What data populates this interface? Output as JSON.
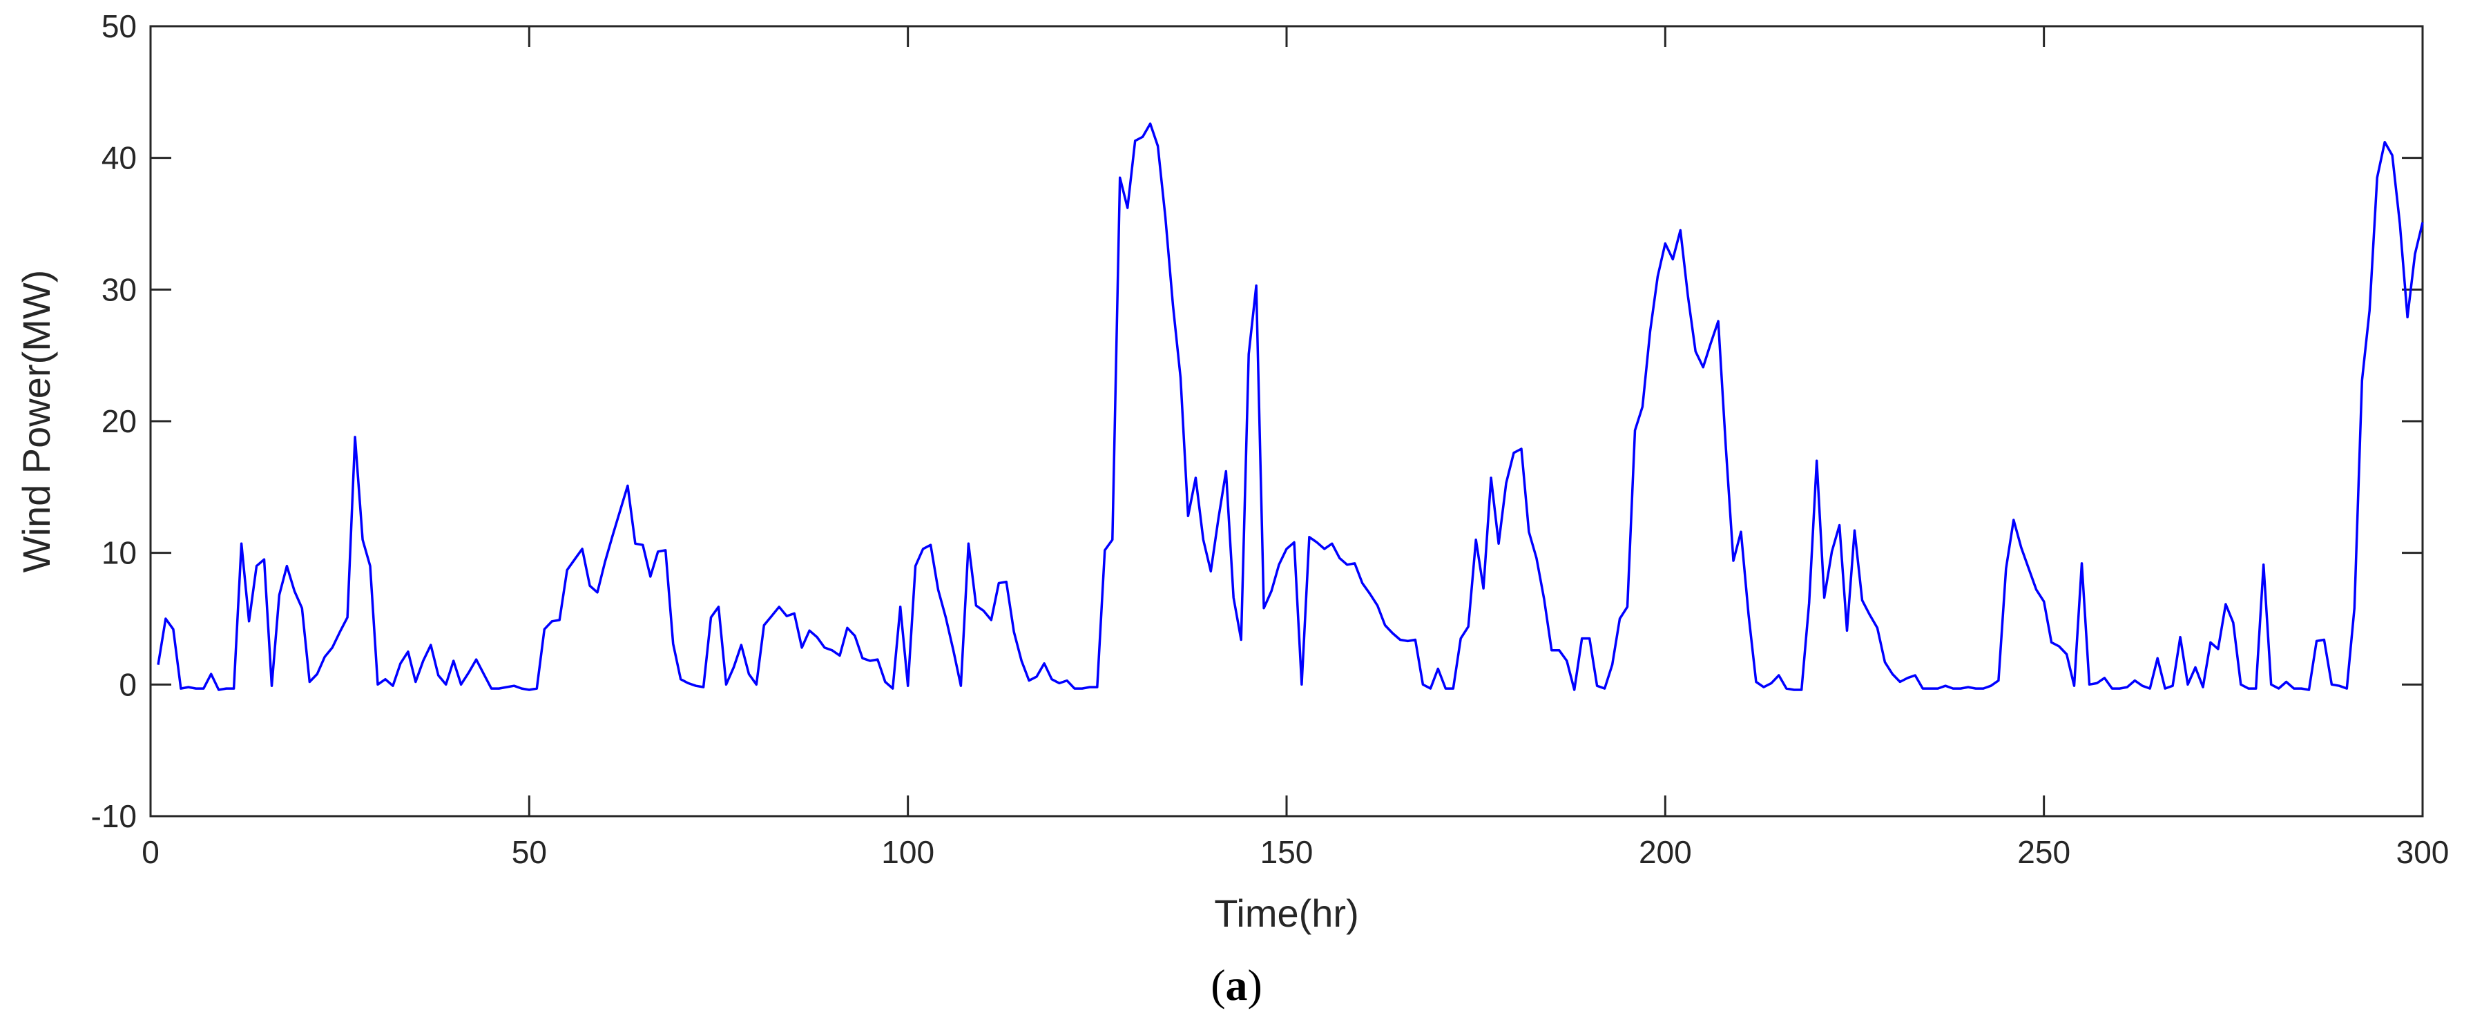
{
  "caption": {
    "open": "(",
    "letter": "a",
    "close": ")"
  },
  "chart_data": {
    "type": "line",
    "xlabel": "Time(hr)",
    "ylabel": "Wind Power(MW)",
    "xlim": [
      0,
      300
    ],
    "ylim": [
      -10,
      50
    ],
    "xticks": [
      0,
      50,
      100,
      150,
      200,
      250,
      300
    ],
    "yticks": [
      -10,
      0,
      10,
      20,
      30,
      40,
      50
    ],
    "grid": false,
    "line_color": "#0000ff",
    "x": [
      1,
      2,
      3,
      4,
      5,
      6,
      7,
      8,
      9,
      10,
      11,
      12,
      13,
      14,
      15,
      16,
      17,
      18,
      19,
      20,
      21,
      22,
      23,
      24,
      25,
      26,
      27,
      28,
      29,
      30,
      31,
      32,
      33,
      34,
      35,
      36,
      37,
      38,
      39,
      40,
      41,
      42,
      43,
      44,
      45,
      46,
      47,
      48,
      49,
      50,
      51,
      52,
      53,
      54,
      55,
      56,
      57,
      58,
      59,
      60,
      61,
      62,
      63,
      64,
      65,
      66,
      67,
      68,
      69,
      70,
      71,
      72,
      73,
      74,
      75,
      76,
      77,
      78,
      79,
      80,
      81,
      82,
      83,
      84,
      85,
      86,
      87,
      88,
      89,
      90,
      91,
      92,
      93,
      94,
      95,
      96,
      97,
      98,
      99,
      100,
      101,
      102,
      103,
      104,
      105,
      106,
      107,
      108,
      109,
      110,
      111,
      112,
      113,
      114,
      115,
      116,
      117,
      118,
      119,
      120,
      121,
      122,
      123,
      124,
      125,
      126,
      127,
      128,
      129,
      130,
      131,
      132,
      133,
      134,
      135,
      136,
      137,
      138,
      139,
      140,
      141,
      142,
      143,
      144,
      145,
      146,
      147,
      148,
      149,
      150,
      151,
      152,
      153,
      154,
      155,
      156,
      157,
      158,
      159,
      160,
      161,
      162,
      163,
      164,
      165,
      166,
      167,
      168,
      169,
      170,
      171,
      172,
      173,
      174,
      175,
      176,
      177,
      178,
      179,
      180,
      181,
      182,
      183,
      184,
      185,
      186,
      187,
      188,
      189,
      190,
      191,
      192,
      193,
      194,
      195,
      196,
      197,
      198,
      199,
      200,
      201,
      202,
      203,
      204,
      205,
      206,
      207,
      208,
      209,
      210,
      211,
      212,
      213,
      214,
      215,
      216,
      217,
      218,
      219,
      220,
      221,
      222,
      223,
      224,
      225,
      226,
      227,
      228,
      229,
      230,
      231,
      232,
      233,
      234,
      235,
      236,
      237,
      238,
      239,
      240,
      241,
      242,
      243,
      244,
      245,
      246,
      247,
      248,
      249,
      250,
      251,
      252,
      253,
      254,
      255,
      256,
      257,
      258,
      259,
      260,
      261,
      262,
      263,
      264,
      265,
      266,
      267,
      268,
      269,
      270,
      271,
      272,
      273,
      274,
      275,
      276,
      277,
      278,
      279,
      280,
      281,
      282,
      283,
      284,
      285,
      286,
      287,
      288,
      289,
      290,
      291,
      292,
      293,
      294,
      295,
      296,
      297,
      298,
      299,
      300
    ],
    "y": [
      1.5,
      5.0,
      4.2,
      -0.3,
      -0.2,
      -0.3,
      -0.3,
      0.8,
      -0.4,
      -0.3,
      -0.3,
      10.7,
      4.8,
      9.0,
      9.5,
      -0.1,
      6.8,
      9.0,
      7.1,
      5.8,
      0.2,
      0.8,
      2.1,
      2.8,
      4.0,
      5.1,
      18.8,
      11.0,
      9.0,
      0.0,
      0.4,
      -0.1,
      1.6,
      2.5,
      0.2,
      1.8,
      3.0,
      0.7,
      0.0,
      1.8,
      0.0,
      0.9,
      1.9,
      0.8,
      -0.3,
      -0.3,
      -0.2,
      -0.1,
      -0.3,
      -0.4,
      -0.3,
      4.2,
      4.8,
      4.9,
      8.7,
      9.5,
      10.3,
      7.5,
      7.0,
      9.3,
      11.3,
      13.2,
      15.1,
      10.7,
      10.6,
      8.2,
      10.1,
      10.2,
      3.1,
      0.4,
      0.1,
      -0.1,
      -0.2,
      5.1,
      5.9,
      0.0,
      1.3,
      3.0,
      0.8,
      0.0,
      4.5,
      5.2,
      5.9,
      5.2,
      5.4,
      2.8,
      4.1,
      3.6,
      2.8,
      2.6,
      2.2,
      4.3,
      3.7,
      2.0,
      1.8,
      1.9,
      0.2,
      -0.3,
      5.9,
      -0.1,
      9.0,
      10.3,
      10.6,
      7.2,
      5.1,
      2.6,
      -0.1,
      10.7,
      6.0,
      5.6,
      4.9,
      7.7,
      7.8,
      4.0,
      1.8,
      0.3,
      0.6,
      1.6,
      0.4,
      0.1,
      0.3,
      -0.3,
      -0.3,
      -0.2,
      -0.2,
      10.2,
      11.0,
      38.5,
      36.2,
      41.3,
      41.6,
      42.6,
      40.9,
      35.5,
      28.8,
      23.3,
      12.8,
      15.7,
      11.0,
      8.6,
      12.6,
      16.2,
      6.6,
      3.4,
      25.1,
      30.3,
      5.8,
      7.1,
      9.1,
      10.3,
      10.8,
      0.0,
      11.2,
      10.8,
      10.3,
      10.7,
      9.6,
      9.1,
      9.2,
      7.7,
      6.9,
      6.0,
      4.5,
      3.9,
      3.4,
      3.3,
      3.4,
      0.0,
      -0.3,
      1.2,
      -0.3,
      -0.3,
      3.5,
      4.4,
      11.0,
      7.3,
      15.7,
      10.7,
      15.3,
      17.6,
      17.9,
      11.6,
      9.6,
      6.5,
      2.6,
      2.6,
      1.8,
      -0.4,
      3.5,
      3.5,
      -0.1,
      -0.3,
      1.5,
      5.0,
      5.9,
      19.3,
      21.1,
      26.8,
      31.0,
      33.5,
      32.3,
      34.5,
      29.5,
      25.3,
      24.1,
      25.9,
      27.6,
      18.0,
      9.4,
      11.6,
      5.3,
      0.2,
      -0.2,
      0.1,
      0.7,
      -0.3,
      -0.4,
      -0.4,
      6.2,
      17.0,
      6.6,
      10.1,
      12.1,
      4.1,
      11.7,
      6.4,
      5.3,
      4.3,
      1.7,
      0.8,
      0.2,
      0.5,
      0.7,
      -0.3,
      -0.3,
      -0.3,
      -0.1,
      -0.3,
      -0.3,
      -0.2,
      -0.3,
      -0.3,
      -0.1,
      0.3,
      8.8,
      12.5,
      10.4,
      8.8,
      7.2,
      6.3,
      3.2,
      2.9,
      2.3,
      -0.1,
      9.2,
      0.0,
      0.1,
      0.5,
      -0.3,
      -0.3,
      -0.2,
      0.3,
      -0.1,
      -0.3,
      2.0,
      -0.3,
      -0.1,
      3.6,
      0.0,
      1.3,
      -0.2,
      3.2,
      2.7,
      6.1,
      4.7,
      0.0,
      -0.3,
      -0.3,
      9.1,
      0.0,
      -0.3,
      0.2,
      -0.3,
      -0.3,
      -0.4,
      3.3,
      3.4,
      0.0,
      -0.1,
      -0.3,
      5.8,
      23.1,
      28.4,
      38.5,
      41.2,
      40.2,
      35.0,
      27.9,
      32.7,
      35.1
    ]
  }
}
